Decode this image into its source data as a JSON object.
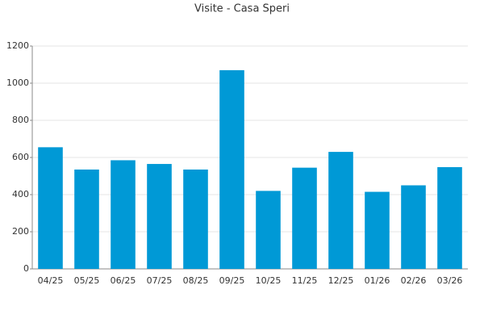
{
  "chart_data": {
    "type": "bar",
    "title": "Visite - Casa Speri",
    "categories": [
      "04/25",
      "05/25",
      "06/25",
      "07/25",
      "08/25",
      "09/25",
      "10/25",
      "11/25",
      "12/25",
      "01/26",
      "02/26",
      "03/26"
    ],
    "values": [
      655,
      535,
      585,
      565,
      535,
      1070,
      420,
      545,
      630,
      415,
      450,
      548
    ],
    "color": "#0099d6",
    "ylim": [
      0,
      1200
    ],
    "yticks": [
      0,
      200,
      400,
      600,
      800,
      1000,
      1200
    ],
    "grid": true
  }
}
